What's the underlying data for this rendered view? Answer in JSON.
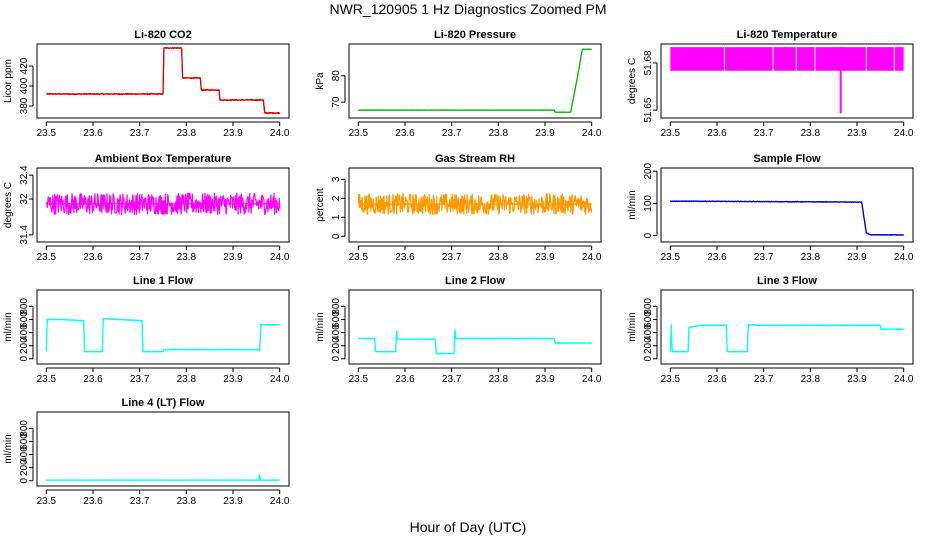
{
  "figure": {
    "title": "NWR_120905  1 Hz Diagnostics Zoomed PM",
    "xlabel": "Hour of Day (UTC)"
  },
  "chart_data": [
    {
      "type": "line",
      "title": "Li-820 CO2",
      "ylabel": "Licor ppm",
      "xlim": [
        23.48,
        24.02
      ],
      "ylim": [
        368,
        442
      ],
      "xticks": [
        "23.5",
        "23.6",
        "23.7",
        "23.8",
        "23.9",
        "24.0"
      ],
      "yticks": [
        380,
        400,
        420
      ],
      "color": "#dd0000",
      "noise": 0.6,
      "x": [
        23.5,
        23.75,
        23.752,
        23.79,
        23.792,
        23.83,
        23.832,
        23.87,
        23.872,
        23.965,
        23.968,
        24.0
      ],
      "y": [
        392,
        392,
        438,
        438,
        408,
        408,
        396,
        396,
        386,
        386,
        373,
        373
      ]
    },
    {
      "type": "line",
      "title": "Li-820 Pressure",
      "ylabel": "kPa",
      "xlim": [
        23.48,
        24.02
      ],
      "ylim": [
        64,
        92
      ],
      "xticks": [
        "23.5",
        "23.6",
        "23.7",
        "23.8",
        "23.9",
        "24.0"
      ],
      "yticks": [
        70,
        80
      ],
      "color": "#00bb00",
      "noise": 0.08,
      "x": [
        23.5,
        23.92,
        23.922,
        23.955,
        23.97,
        23.98,
        24.0
      ],
      "y": [
        67,
        67,
        66.2,
        66.2,
        80,
        90,
        90
      ]
    },
    {
      "type": "line",
      "title": "Li-820 Temperature",
      "ylabel": "degrees C",
      "xlim": [
        23.48,
        24.02
      ],
      "ylim": [
        51.645,
        51.692
      ],
      "xticks": [
        "23.5",
        "23.6",
        "23.7",
        "23.8",
        "23.9",
        "24.0"
      ],
      "yticks": [
        51.65,
        51.68
      ],
      "color": "#ff00ff",
      "band": [
        51.675,
        51.69
      ],
      "x": [
        23.5,
        23.616,
        23.745,
        23.865,
        23.9
      ],
      "y": [
        51.688,
        51.68,
        51.676,
        51.648,
        51.648
      ]
    },
    {
      "type": "line",
      "title": "Ambient Box Temperature",
      "ylabel": "degrees C",
      "xlim": [
        23.48,
        24.02
      ],
      "ylim": [
        31.28,
        32.52
      ],
      "xticks": [
        "23.5",
        "23.6",
        "23.7",
        "23.8",
        "23.9",
        "24.0"
      ],
      "yticks": [
        31.4,
        32.0,
        32.4
      ],
      "color": "#ff00ff",
      "noise": 0.18,
      "x": [
        23.5,
        24.0
      ],
      "y": [
        31.92,
        31.92
      ]
    },
    {
      "type": "line",
      "title": "Gas Stream RH",
      "ylabel": "percent",
      "xlim": [
        23.48,
        24.02
      ],
      "ylim": [
        -0.3,
        3.6
      ],
      "xticks": [
        "23.5",
        "23.6",
        "23.7",
        "23.8",
        "23.9",
        "24.0"
      ],
      "yticks": [
        0,
        1,
        2,
        3
      ],
      "color": "#ff9900",
      "noise": 0.55,
      "x": [
        23.5,
        24.0
      ],
      "y": [
        1.7,
        1.7
      ]
    },
    {
      "type": "line",
      "title": "Sample Flow",
      "ylabel": "ml/min",
      "xlim": [
        23.48,
        24.02
      ],
      "ylim": [
        -20,
        210
      ],
      "xticks": [
        "23.5",
        "23.6",
        "23.7",
        "23.8",
        "23.9",
        "24.0"
      ],
      "yticks": [
        0,
        100,
        200
      ],
      "color": "#0000dd",
      "noise": 1.2,
      "x": [
        23.5,
        23.91,
        23.92,
        23.93,
        24.0
      ],
      "y": [
        107,
        104,
        8,
        2,
        2
      ]
    },
    {
      "type": "line",
      "title": "Line 1 Flow",
      "ylabel": "ml/min",
      "xlim": [
        23.48,
        24.02
      ],
      "ylim": [
        -80,
        1050
      ],
      "xticks": [
        "23.5",
        "23.6",
        "23.7",
        "23.8",
        "23.9",
        "24.0"
      ],
      "yticks": [
        0,
        200,
        400,
        600,
        800
      ],
      "color": "#00ffff",
      "noise": 6,
      "x": [
        23.5,
        23.502,
        23.535,
        23.58,
        23.582,
        23.62,
        23.622,
        23.66,
        23.705,
        23.707,
        23.75,
        23.752,
        23.955,
        23.957,
        23.96,
        24.0
      ],
      "y": [
        120,
        600,
        600,
        580,
        110,
        110,
        610,
        600,
        580,
        110,
        110,
        140,
        140,
        120,
        520,
        520
      ]
    },
    {
      "type": "line",
      "title": "Line 2 Flow",
      "ylabel": "ml/min",
      "xlim": [
        23.48,
        24.02
      ],
      "ylim": [
        -80,
        1050
      ],
      "xticks": [
        "23.5",
        "23.6",
        "23.7",
        "23.8",
        "23.9",
        "24.0"
      ],
      "yticks": [
        0,
        200,
        400,
        600,
        800
      ],
      "color": "#00ffff",
      "noise": 5,
      "x": [
        23.5,
        23.535,
        23.537,
        23.58,
        23.582,
        23.584,
        23.665,
        23.667,
        23.705,
        23.707,
        23.709,
        23.92,
        23.922,
        24.0
      ],
      "y": [
        310,
        310,
        110,
        110,
        420,
        300,
        300,
        80,
        80,
        440,
        310,
        310,
        240,
        240
      ]
    },
    {
      "type": "line",
      "title": "Line 3 Flow",
      "ylabel": "ml/min",
      "xlim": [
        23.48,
        24.02
      ],
      "ylim": [
        -80,
        1050
      ],
      "xticks": [
        "23.5",
        "23.6",
        "23.7",
        "23.8",
        "23.9",
        "24.0"
      ],
      "yticks": [
        0,
        200,
        400,
        600,
        800
      ],
      "color": "#00ffff",
      "noise": 6,
      "x": [
        23.5,
        23.502,
        23.504,
        23.538,
        23.54,
        23.565,
        23.62,
        23.622,
        23.665,
        23.667,
        23.7,
        23.95,
        23.952,
        24.0
      ],
      "y": [
        110,
        520,
        110,
        110,
        480,
        510,
        510,
        110,
        110,
        520,
        510,
        510,
        450,
        450
      ]
    },
    {
      "type": "line",
      "title": "Line 4 (LT) Flow",
      "ylabel": "ml/min",
      "xlim": [
        23.48,
        24.02
      ],
      "ylim": [
        -80,
        1050
      ],
      "xticks": [
        "23.5",
        "23.6",
        "23.7",
        "23.8",
        "23.9",
        "24.0"
      ],
      "yticks": [
        0,
        200,
        400,
        600,
        800
      ],
      "color": "#00ffff",
      "noise": 2,
      "x": [
        23.5,
        23.955,
        23.957,
        23.959,
        24.0
      ],
      "y": [
        10,
        10,
        90,
        10,
        10
      ]
    }
  ]
}
